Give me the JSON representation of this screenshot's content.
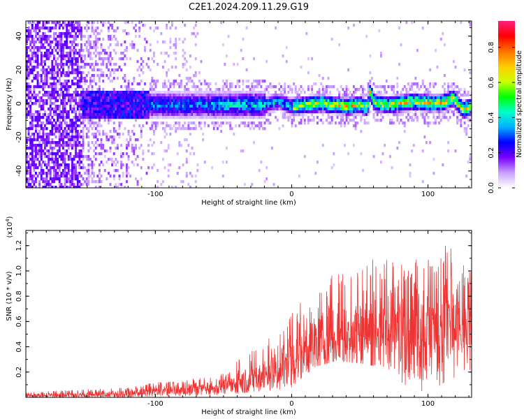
{
  "title": "C2E1.2024.209.11.29.G19",
  "chart_data": [
    {
      "type": "heatmap",
      "xlabel": "Height of straight line (km)",
      "ylabel": "Frequency (Hz)",
      "xlim": [
        -195,
        132
      ],
      "ylim": [
        -50,
        49
      ],
      "xticks": [
        -100,
        0,
        100
      ],
      "yticks": [
        -40,
        -20,
        0,
        20,
        40
      ],
      "grid": false,
      "colorbar": {
        "label": "Normalized spectral amplitude",
        "range": [
          0.0,
          0.95
        ],
        "ticks": [
          0.0,
          0.2,
          0.4,
          0.6,
          0.8
        ],
        "tick_labels": [
          "0.0",
          "0.2",
          "0.4",
          "0.6",
          "0.8"
        ],
        "colors": [
          "#ffffff",
          "#c9a0ff",
          "#7a00ff",
          "#0000ff",
          "#00b0ff",
          "#00ffcc",
          "#00ff00",
          "#ccff00",
          "#ffcc00",
          "#ff7000",
          "#ff0000",
          "#ff2080"
        ]
      },
      "ridge": {
        "description_free_points": true,
        "x": [
          -195,
          -150,
          -120,
          -100,
          -80,
          -60,
          -40,
          -20,
          -10,
          0,
          10,
          20,
          30,
          40,
          50,
          55,
          57,
          60,
          70,
          80,
          90,
          100,
          110,
          118,
          125,
          132
        ],
        "freq": [
          0,
          0,
          0,
          0,
          0,
          0,
          0,
          0,
          2,
          -1,
          0,
          1,
          0,
          -1,
          0,
          -2,
          8,
          1,
          0,
          1,
          2,
          1,
          1,
          4,
          -3,
          -1
        ]
      }
    },
    {
      "type": "line",
      "xlabel": "Height of straight line (km)",
      "ylabel": "SNR (10 * v/v)",
      "multiplier_label": "(x10",
      "multiplier_exp": "4",
      "multiplier_close": ")",
      "xlim": [
        -195,
        132
      ],
      "ylim": [
        0,
        1.32
      ],
      "xticks": [
        -100,
        0,
        100
      ],
      "yticks": [
        0.2,
        0.4,
        0.6,
        0.8,
        1.0,
        1.2
      ],
      "ytick_labels": [
        "0.2",
        "0.4",
        "0.6",
        "0.8",
        "1.0",
        "1.2"
      ],
      "color": "#ee3333",
      "grid": false,
      "envelope": {
        "x": [
          -195,
          -160,
          -120,
          -100,
          -80,
          -60,
          -45,
          -40,
          -30,
          -20,
          -10,
          0,
          10,
          20,
          30,
          40,
          50,
          60,
          70,
          80,
          90,
          100,
          110,
          115,
          120,
          132
        ],
        "upper": [
          0.04,
          0.06,
          0.08,
          0.12,
          0.13,
          0.17,
          0.22,
          0.3,
          0.38,
          0.45,
          0.55,
          0.68,
          0.8,
          0.88,
          0.97,
          1.1,
          1.05,
          1.12,
          1.1,
          1.05,
          1.12,
          1.12,
          1.15,
          1.3,
          1.08,
          1.05
        ],
        "lower": [
          0.0,
          0.0,
          0.0,
          0.01,
          0.01,
          0.02,
          0.03,
          0.03,
          0.04,
          0.05,
          0.06,
          0.08,
          0.18,
          0.25,
          0.28,
          0.28,
          0.27,
          0.25,
          0.24,
          0.1,
          0.05,
          0.05,
          0.1,
          0.15,
          0.1,
          0.15
        ],
        "mean": [
          0.015,
          0.02,
          0.03,
          0.05,
          0.06,
          0.08,
          0.1,
          0.12,
          0.14,
          0.18,
          0.22,
          0.3,
          0.4,
          0.45,
          0.48,
          0.52,
          0.52,
          0.55,
          0.55,
          0.55,
          0.56,
          0.57,
          0.58,
          0.6,
          0.55,
          0.55
        ]
      }
    }
  ]
}
